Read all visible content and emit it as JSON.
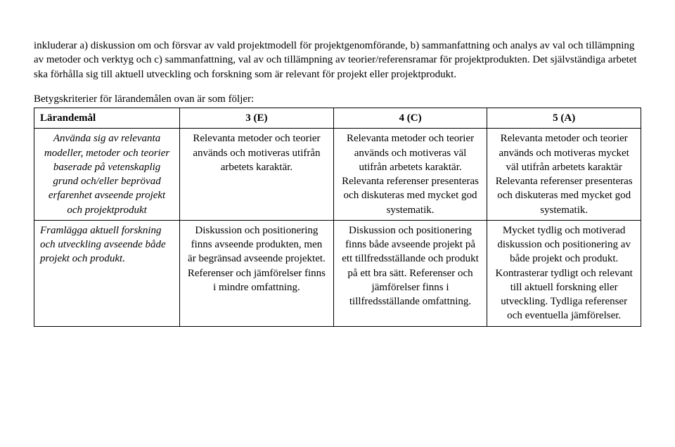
{
  "intro_paragraph": "inkluderar a) diskussion om och försvar av vald projektmodell för projektgenomförande, b) sammanfattning och analys av val och tillämpning av metoder och verktyg och c) sammanfattning, val av och tillämpning av teorier/referensramar för projektprodukten. Det självständiga arbetet ska förhålla sig till aktuell utveckling och forskning som är relevant för projekt eller projektprodukt.",
  "criteria_intro": "Betygskriterier för lärandemålen ovan är som följer:",
  "table": {
    "headers": {
      "col0": "Lärandemål",
      "col1": "3 (E)",
      "col2": "4 (C)",
      "col3": "5 (A)"
    },
    "rows": [
      {
        "lm": "Använda sig av relevanta modeller, metoder och teorier baserade på vetenskaplig grund och/eller beprövad erfarenhet avseende projekt och projektprodukt",
        "e": "Relevanta metoder och teorier används och motiveras utifrån arbetets karaktär.",
        "c": "Relevanta metoder och teorier används och motiveras väl utifrån arbetets karaktär. Relevanta referenser presenteras och diskuteras med mycket god systematik.",
        "a": "Relevanta metoder och teorier används och motiveras mycket väl utifrån arbetets karaktär Relevanta referenser presenteras och diskuteras med mycket god systematik."
      },
      {
        "lm": "Framlägga aktuell forskning och utveckling avseende både projekt och produkt.",
        "e": "Diskussion och positionering finns avseende produkten, men är begränsad avseende projektet. Referenser och jämförelser finns i mindre omfattning.",
        "c": "Diskussion och positionering finns både avseende projekt på ett tillfredsställande och produkt på ett bra sätt. Referenser och jämförelser finns i tillfredsställande omfattning.",
        "a": "Mycket tydlig och motiverad diskussion och positionering av både projekt och produkt. Kontrasterar tydligt och relevant till aktuell forskning eller utveckling. Tydliga referenser och eventuella jämförelser."
      }
    ]
  }
}
